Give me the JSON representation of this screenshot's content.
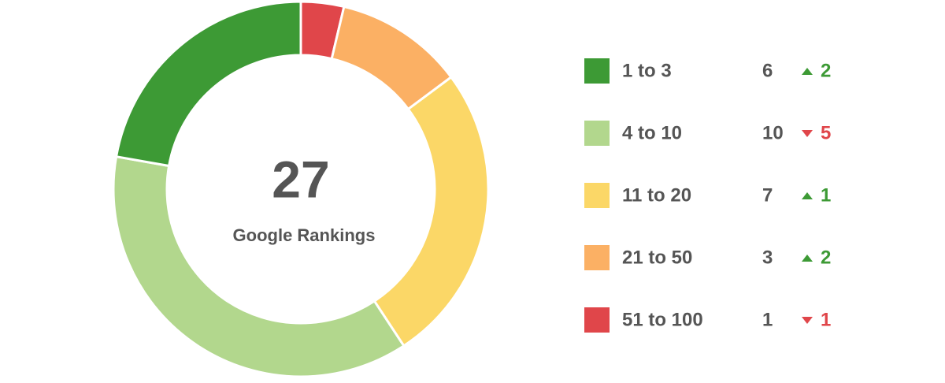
{
  "chart_data": {
    "type": "donut",
    "total": 27,
    "total_label": "Google Rankings",
    "categories": [
      "1 to 3",
      "4 to 10",
      "11 to 20",
      "21 to 50",
      "51 to 100"
    ],
    "values": [
      6,
      10,
      7,
      3,
      1
    ],
    "colors": [
      "#3d9a35",
      "#b2d78d",
      "#fbd767",
      "#fbb064",
      "#e0464a"
    ],
    "changes": [
      2,
      -5,
      1,
      2,
      -1
    ],
    "change_labels": [
      "2",
      "5",
      "1",
      "2",
      "1"
    ],
    "up_color": "#3d9a35",
    "down_color": "#e0464a"
  }
}
